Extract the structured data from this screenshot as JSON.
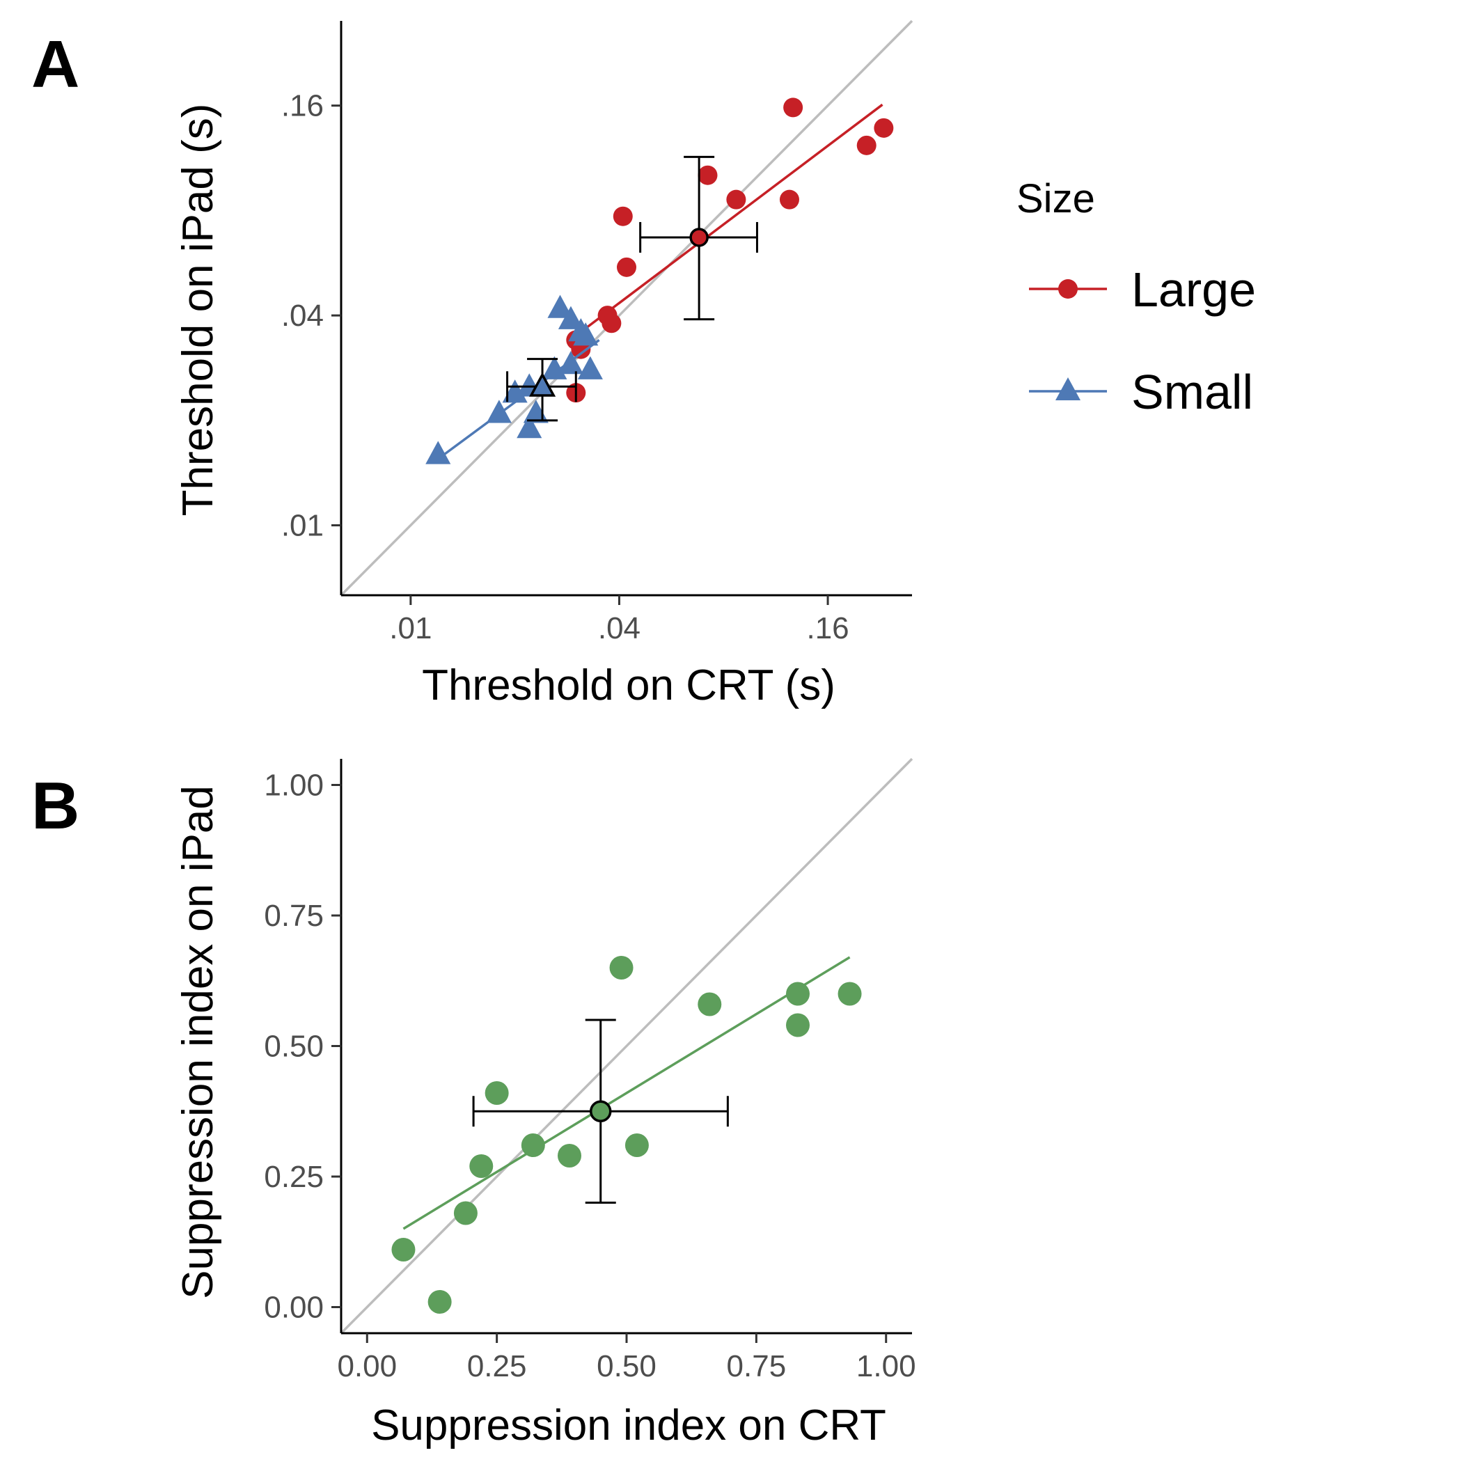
{
  "panels": {
    "a": {
      "label": "A"
    },
    "b": {
      "label": "B"
    }
  },
  "legend": {
    "title": "Size",
    "items": [
      {
        "label": "Large",
        "color": "#c62026",
        "shape": "circle"
      },
      {
        "label": "Small",
        "color": "#4e79b5",
        "shape": "triangle"
      }
    ]
  },
  "chart_data": [
    {
      "type": "scatter",
      "panel": "A",
      "xlabel": "Threshold on CRT (s)",
      "ylabel": "Threshold on iPad (s)",
      "scale": "log",
      "xlim": [
        0.0063,
        0.28
      ],
      "ylim": [
        0.0063,
        0.28
      ],
      "xticks": [
        0.01,
        0.04,
        0.16
      ],
      "xtick_labels": [
        ".01",
        ".04",
        ".16"
      ],
      "yticks": [
        0.01,
        0.04,
        0.16
      ],
      "ytick_labels": [
        ".01",
        ".04",
        ".16"
      ],
      "grid": false,
      "identity_line": true,
      "legend_position": "right",
      "series": [
        {
          "name": "Large",
          "color": "#c62026",
          "marker": "circle",
          "points": [
            [
              0.127,
              0.158
            ],
            [
              0.232,
              0.138
            ],
            [
              0.207,
              0.123
            ],
            [
              0.072,
              0.101
            ],
            [
              0.087,
              0.086
            ],
            [
              0.124,
              0.086
            ],
            [
              0.041,
              0.077
            ],
            [
              0.042,
              0.055
            ],
            [
              0.037,
              0.04
            ],
            [
              0.038,
              0.038
            ],
            [
              0.03,
              0.034
            ],
            [
              0.031,
              0.032
            ],
            [
              0.03,
              0.024
            ]
          ],
          "fit": {
            "x": [
              0.03,
              0.23
            ],
            "y": [
              0.035,
              0.161
            ]
          },
          "mean": {
            "x": 0.068,
            "y": 0.067,
            "xerr": [
              0.046,
              0.1
            ],
            "yerr": [
              0.039,
              0.114
            ]
          }
        },
        {
          "name": "Small",
          "color": "#4e79b5",
          "marker": "triangle",
          "points": [
            [
              0.027,
              0.042
            ],
            [
              0.029,
              0.039
            ],
            [
              0.031,
              0.036
            ],
            [
              0.032,
              0.035
            ],
            [
              0.029,
              0.029
            ],
            [
              0.026,
              0.028
            ],
            [
              0.033,
              0.028
            ],
            [
              0.022,
              0.025
            ],
            [
              0.024,
              0.025
            ],
            [
              0.02,
              0.024
            ],
            [
              0.018,
              0.021
            ],
            [
              0.023,
              0.021
            ],
            [
              0.022,
              0.019
            ],
            [
              0.012,
              0.016
            ]
          ],
          "fit": {
            "x": [
              0.012,
              0.035
            ],
            "y": [
              0.0155,
              0.034
            ]
          },
          "mean": {
            "x": 0.024,
            "y": 0.025,
            "xerr": [
              0.019,
              0.03
            ],
            "yerr": [
              0.02,
              0.03
            ]
          }
        }
      ]
    },
    {
      "type": "scatter",
      "panel": "B",
      "xlabel": "Suppression index on CRT",
      "ylabel": "Suppression index on iPad",
      "xlim": [
        -0.05,
        1.05
      ],
      "ylim": [
        -0.05,
        1.05
      ],
      "xticks": [
        0.0,
        0.25,
        0.5,
        0.75,
        1.0
      ],
      "xtick_labels": [
        "0.00",
        "0.25",
        "0.50",
        "0.75",
        "1.00"
      ],
      "yticks": [
        0.0,
        0.25,
        0.5,
        0.75,
        1.0
      ],
      "ytick_labels": [
        "0.00",
        "0.25",
        "0.50",
        "0.75",
        "1.00"
      ],
      "grid": false,
      "identity_line": true,
      "series": [
        {
          "color": "#5d9e5b",
          "marker": "circle",
          "points": [
            [
              0.49,
              0.65
            ],
            [
              0.66,
              0.58
            ],
            [
              0.83,
              0.6
            ],
            [
              0.93,
              0.6
            ],
            [
              0.83,
              0.54
            ],
            [
              0.25,
              0.41
            ],
            [
              0.32,
              0.31
            ],
            [
              0.52,
              0.31
            ],
            [
              0.39,
              0.29
            ],
            [
              0.22,
              0.27
            ],
            [
              0.19,
              0.18
            ],
            [
              0.07,
              0.11
            ],
            [
              0.14,
              0.01
            ]
          ],
          "fit": {
            "x": [
              0.07,
              0.93
            ],
            "y": [
              0.15,
              0.67
            ]
          },
          "mean": {
            "x": 0.45,
            "y": 0.375,
            "xerr": [
              0.205,
              0.695
            ],
            "yerr": [
              0.2,
              0.55
            ]
          }
        }
      ]
    }
  ]
}
